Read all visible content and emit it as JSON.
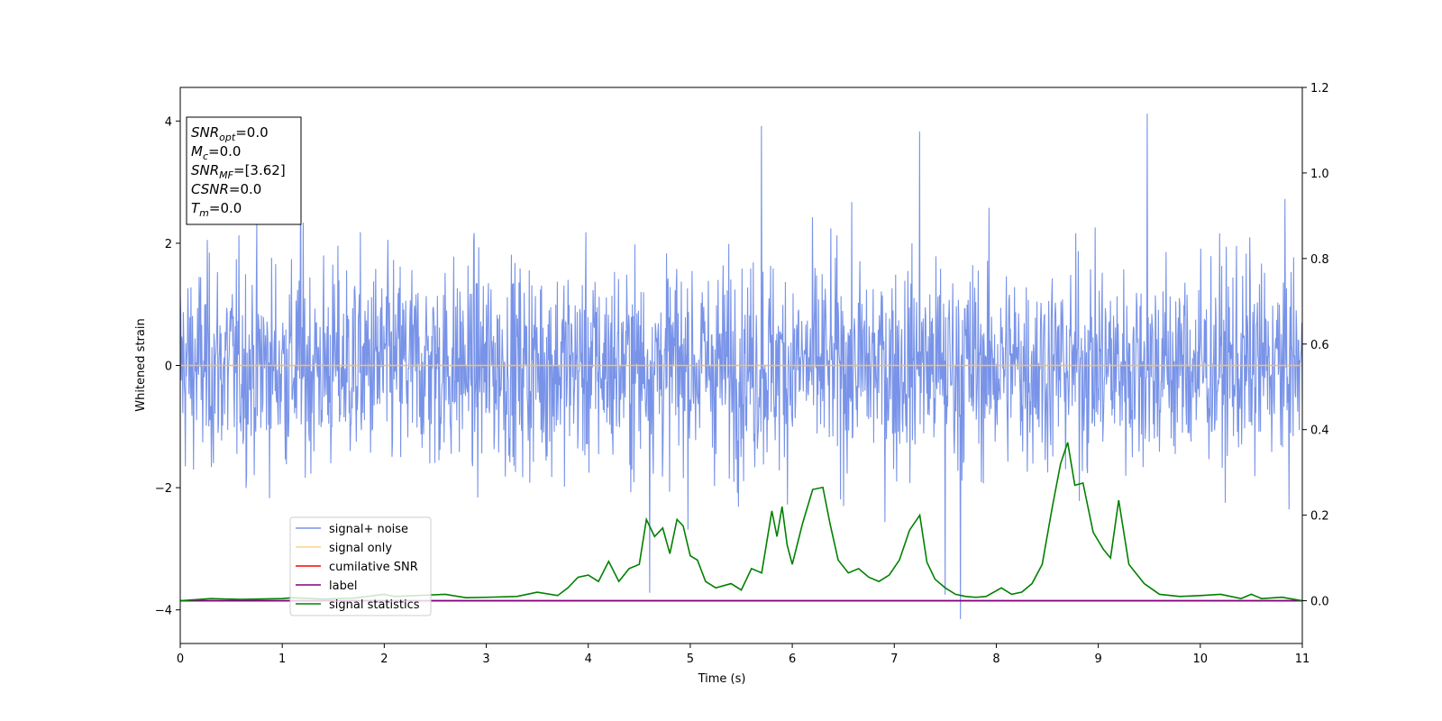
{
  "chart_data": {
    "type": "line",
    "xlabel": "Time (s)",
    "ylabel": "Whitened strain",
    "xlim": [
      0,
      11
    ],
    "ylim": [
      -4.55,
      4.55
    ],
    "y2lim": [
      -0.1,
      1.2
    ],
    "x_ticks": [
      "0",
      "1",
      "2",
      "3",
      "4",
      "5",
      "6",
      "7",
      "8",
      "9",
      "10",
      "11"
    ],
    "y_ticks": [
      "-4",
      "-2",
      "0",
      "2",
      "4"
    ],
    "y2_ticks": [
      "0.0",
      "0.2",
      "0.4",
      "0.6",
      "0.8",
      "1.0",
      "1.2"
    ],
    "grid": false,
    "legend_position": "lower-left",
    "info_box": {
      "position": "top-left",
      "lines": [
        {
          "label": "SNR",
          "sub": "opt",
          "value": "=0.0"
        },
        {
          "label": "M",
          "sub": "c",
          "value": "=0.0"
        },
        {
          "label": "SNR",
          "sub": "MF",
          "value": "=[3.62]"
        },
        {
          "label": "CSNR",
          "sub": "",
          "value": "=0.0"
        },
        {
          "label": "T",
          "sub": "m",
          "value": "=0.0"
        }
      ]
    },
    "series": [
      {
        "name": "signal+ noise",
        "axis": "left",
        "color": "#7893e8",
        "description_only": false,
        "noise": {
          "std": 0.85,
          "min": -4.15,
          "max": 4.1,
          "n_points": 2200
        },
        "notable_extremes": [
          [
            1.18,
            3.68
          ],
          [
            5.7,
            3.92
          ],
          [
            7.25,
            3.83
          ],
          [
            9.48,
            4.12
          ],
          [
            7.65,
            -4.15
          ],
          [
            7.5,
            -3.75
          ],
          [
            4.6,
            -3.72
          ]
        ]
      },
      {
        "name": "signal only",
        "axis": "left",
        "color": "#ffbf50",
        "x": [
          0,
          11
        ],
        "y": [
          0,
          0
        ]
      },
      {
        "name": "cumilative SNR",
        "axis": "right",
        "color": "#ff0000",
        "x": [
          0,
          11
        ],
        "y": [
          0,
          0
        ]
      },
      {
        "name": "label",
        "axis": "right",
        "color": "#800080",
        "x": [
          0,
          11
        ],
        "y": [
          0,
          0
        ]
      },
      {
        "name": "signal statistics",
        "axis": "right",
        "color": "#008000",
        "x": [
          0,
          0.3,
          0.6,
          1.0,
          1.1,
          1.4,
          1.7,
          2.0,
          2.1,
          2.4,
          2.6,
          2.8,
          3.0,
          3.3,
          3.5,
          3.7,
          3.8,
          3.9,
          4.0,
          4.1,
          4.2,
          4.3,
          4.4,
          4.5,
          4.57,
          4.65,
          4.73,
          4.8,
          4.87,
          4.93,
          5.0,
          5.07,
          5.15,
          5.25,
          5.4,
          5.5,
          5.6,
          5.7,
          5.8,
          5.85,
          5.9,
          5.95,
          6.0,
          6.1,
          6.2,
          6.3,
          6.37,
          6.45,
          6.55,
          6.65,
          6.75,
          6.85,
          6.95,
          7.05,
          7.15,
          7.25,
          7.32,
          7.4,
          7.5,
          7.6,
          7.7,
          7.8,
          7.9,
          8.05,
          8.15,
          8.25,
          8.35,
          8.45,
          8.55,
          8.63,
          8.7,
          8.77,
          8.85,
          8.95,
          9.05,
          9.12,
          9.2,
          9.3,
          9.45,
          9.6,
          9.8,
          10.0,
          10.2,
          10.4,
          10.5,
          10.6,
          10.8,
          11.0
        ],
        "y": [
          0.0,
          0.005,
          0.003,
          0.005,
          0.007,
          0.004,
          0.006,
          0.015,
          0.01,
          0.013,
          0.015,
          0.007,
          0.008,
          0.01,
          0.02,
          0.012,
          0.03,
          0.055,
          0.06,
          0.045,
          0.092,
          0.045,
          0.075,
          0.085,
          0.19,
          0.15,
          0.17,
          0.11,
          0.19,
          0.175,
          0.105,
          0.095,
          0.045,
          0.03,
          0.04,
          0.025,
          0.075,
          0.065,
          0.21,
          0.15,
          0.22,
          0.13,
          0.085,
          0.18,
          0.26,
          0.265,
          0.18,
          0.095,
          0.065,
          0.075,
          0.055,
          0.045,
          0.06,
          0.095,
          0.165,
          0.2,
          0.09,
          0.05,
          0.03,
          0.015,
          0.01,
          0.008,
          0.01,
          0.03,
          0.015,
          0.02,
          0.04,
          0.085,
          0.22,
          0.32,
          0.37,
          0.27,
          0.275,
          0.16,
          0.12,
          0.1,
          0.235,
          0.085,
          0.04,
          0.015,
          0.01,
          0.012,
          0.015,
          0.005,
          0.015,
          0.005,
          0.008,
          0.0
        ]
      }
    ]
  }
}
